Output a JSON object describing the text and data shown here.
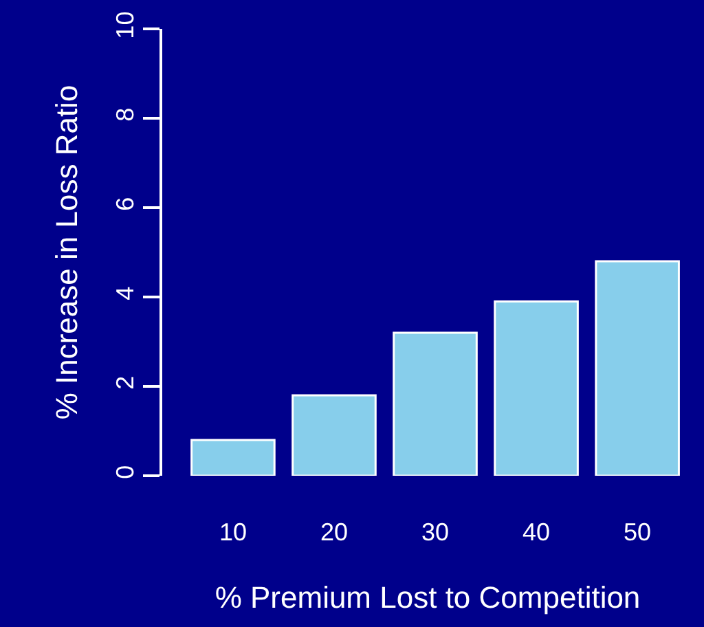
{
  "chart_data": {
    "type": "bar",
    "xlabel": "% Premium Lost to Competition",
    "ylabel": "% Increase in Loss Ratio",
    "categories": [
      "10",
      "20",
      "30",
      "40",
      "50"
    ],
    "values": [
      0.8,
      1.8,
      3.2,
      3.9,
      4.8
    ],
    "color": "#87ceeb",
    "ylim": [
      0,
      10
    ],
    "yticks": [
      0,
      2,
      4,
      6,
      8,
      10
    ],
    "grid": false
  }
}
